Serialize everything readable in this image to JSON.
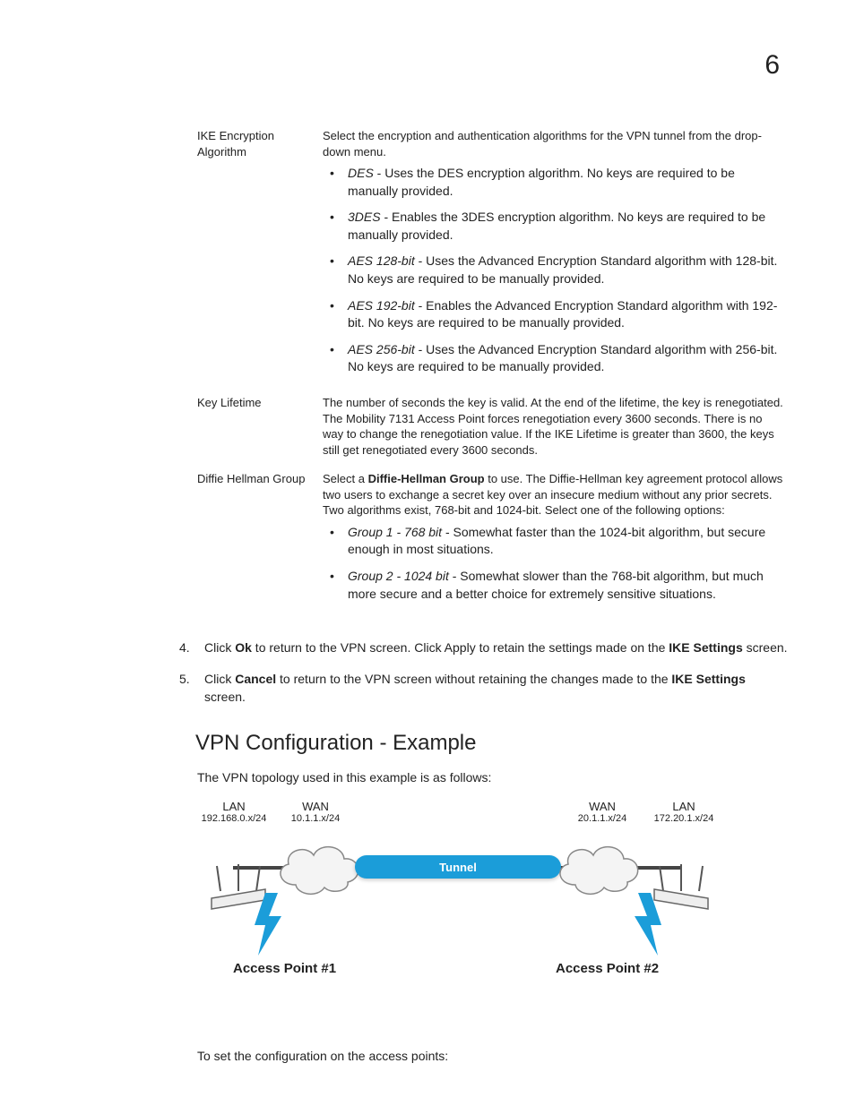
{
  "page_number": "6",
  "definitions": [
    {
      "label": "IKE Encryption Algorithm",
      "intro": "Select the encryption and authentication algorithms for the VPN tunnel from the drop-down menu.",
      "bullets": [
        {
          "term": "DES",
          "text": " - Uses the DES encryption algorithm. No keys are required to be manually provided."
        },
        {
          "term": "3DES",
          "text": " - Enables the 3DES encryption algorithm. No keys are required to be manually provided."
        },
        {
          "term": "AES 128-bit",
          "text": " - Uses the Advanced Encryption Standard algorithm with 128-bit. No keys are required to be manually provided."
        },
        {
          "term": "AES 192-bit",
          "text": " - Enables the Advanced Encryption Standard algorithm with 192-bit. No keys are required to be manually provided."
        },
        {
          "term": "AES 256-bit",
          "text": " - Uses the Advanced Encryption Standard algorithm with 256-bit. No keys are required to be manually provided."
        }
      ]
    },
    {
      "label": "Key Lifetime",
      "intro": "The number of seconds the key is valid. At the end of the lifetime, the key is renegotiated. The Mobility 7131 Access Point forces renegotiation every 3600 seconds. There is no way to change the renegotiation value. If the IKE Lifetime is greater than 3600, the keys still get renegotiated every 3600 seconds.",
      "bullets": []
    },
    {
      "label": "Diffie Hellman Group",
      "intro_pre": "Select a ",
      "intro_boldterm": "Diffie-Hellman Group",
      "intro_post": " to use. The Diffie-Hellman key agreement protocol allows two users to exchange a secret key over an insecure medium without any prior secrets. Two algorithms exist, 768-bit and 1024-bit. Select one of the following options:",
      "bullets": [
        {
          "term": "Group 1 - 768 bit",
          "text": " - Somewhat faster than the 1024-bit algorithm, but secure enough in most situations."
        },
        {
          "term": "Group 2 - 1024 bit",
          "text": " - Somewhat slower than the 768-bit algorithm, but much more secure and a better choice for extremely sensitive situations."
        }
      ]
    }
  ],
  "steps": [
    {
      "n": "4.",
      "pre": "Click ",
      "b1": "Ok",
      "mid": " to return to the VPN screen. Click Apply to retain the settings made on the ",
      "b2": "IKE Settings",
      "post": " screen."
    },
    {
      "n": "5.",
      "pre": "Click ",
      "b1": "Cancel",
      "mid": " to return to the VPN screen without retaining the changes made to the ",
      "b2": "IKE Settings",
      "post": " screen."
    }
  ],
  "section_heading": "VPN Configuration - Example",
  "section_intro": "The VPN topology used in this example is as follows:",
  "section_outro": "To set the configuration on the access points:",
  "topology": {
    "left_lan": {
      "title": "LAN",
      "sub": "192.168.0.x/24"
    },
    "left_wan": {
      "title": "WAN",
      "sub": "10.1.1.x/24"
    },
    "right_wan": {
      "title": "WAN",
      "sub": "20.1.1.x/24"
    },
    "right_lan": {
      "title": "LAN",
      "sub": "172.20.1.x/24"
    },
    "tunnel_label": "Tunnel",
    "ap1_label": "Access Point #1",
    "ap2_label": "Access Point #2",
    "colors": {
      "tunnel": "#1b9dd9",
      "bolt": "#1b9dd9",
      "cloud_stroke": "#888888",
      "cloud_fill": "#f4f4f4",
      "line": "#444444"
    }
  }
}
